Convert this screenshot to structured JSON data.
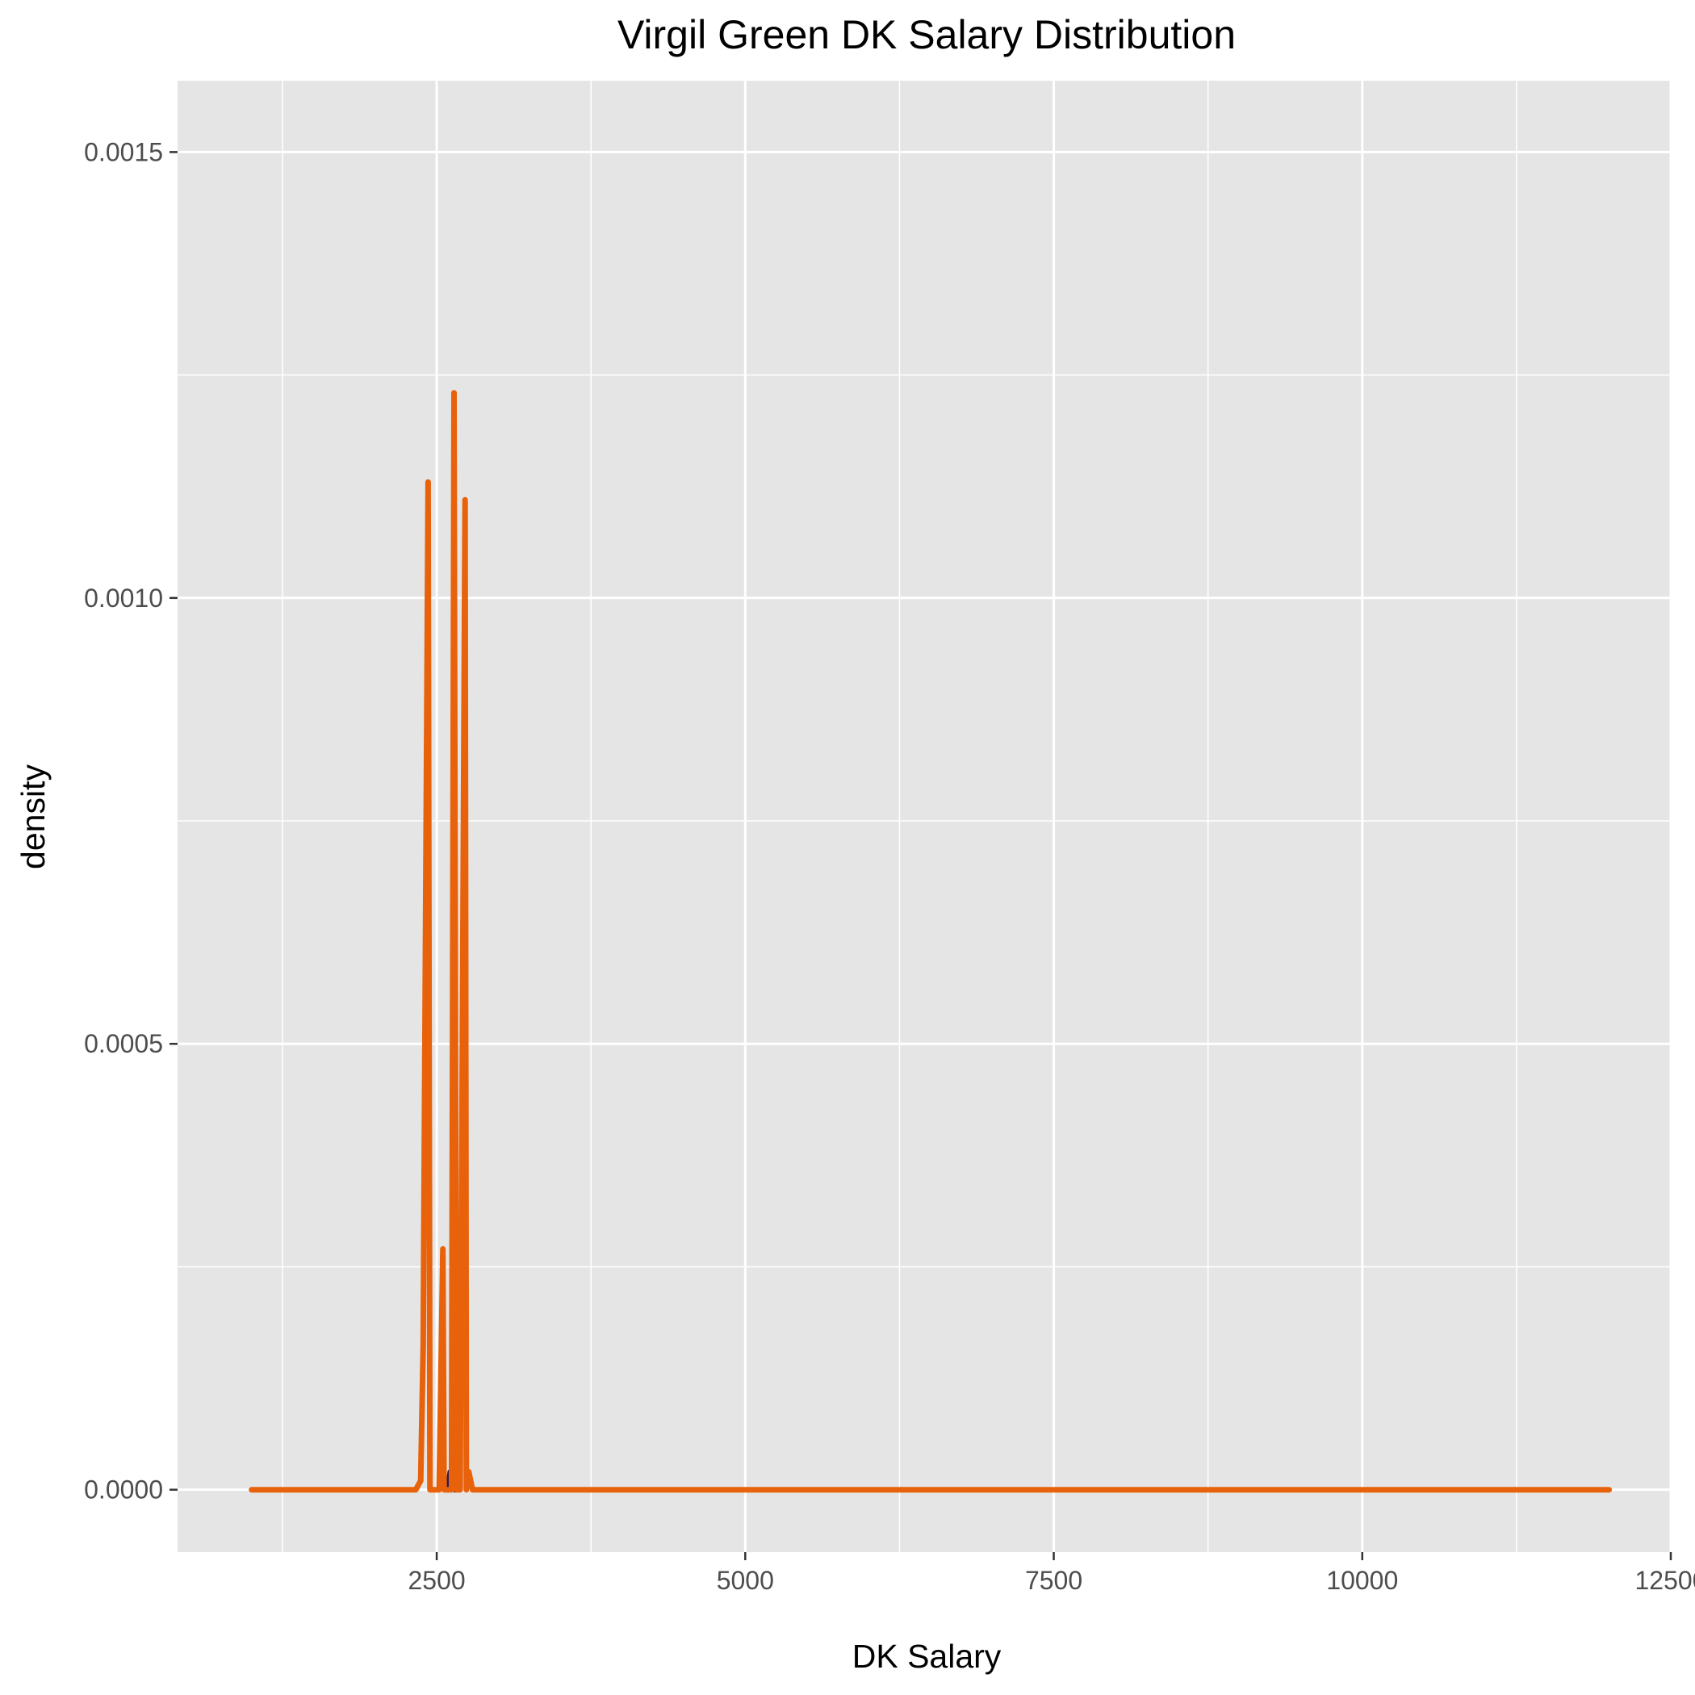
{
  "chart_data": {
    "type": "line",
    "title": "Virgil Green DK Salary Distribution",
    "xlabel": "DK Salary",
    "ylabel": "density",
    "xlim": [
      400,
      12500
    ],
    "ylim": [
      -7e-05,
      0.00158
    ],
    "x_ticks": [
      {
        "value": 2500,
        "label": "2500"
      },
      {
        "value": 5000,
        "label": "5000"
      },
      {
        "value": 7500,
        "label": "7500"
      },
      {
        "value": 10000,
        "label": "10000"
      },
      {
        "value": 12500,
        "label": "12500"
      }
    ],
    "y_ticks": [
      {
        "value": 0,
        "label": "0.0000"
      },
      {
        "value": 0.0005,
        "label": "0.0005"
      },
      {
        "value": 0.001,
        "label": "0.0010"
      },
      {
        "value": 0.0015,
        "label": "0.0015"
      }
    ],
    "x_minor_ticks": [
      1250,
      3750,
      6250,
      8750,
      11250
    ],
    "y_minor_ticks": [
      0.00025,
      0.00075,
      0.00125
    ],
    "grid": true,
    "colors": {
      "panel_background": "#e5e5e5",
      "grid": "#ffffff",
      "line": "#e8620c",
      "secondary_line": "#1f1a5e"
    },
    "series": [
      {
        "color": "#e8620c",
        "x": [
          1000,
          2330,
          2370,
          2390,
          2430,
          2445,
          2520,
          2550,
          2560,
          2570,
          2620,
          2640,
          2660,
          2690,
          2730,
          2740,
          2760,
          2790,
          2800,
          2830,
          2900,
          12000
        ],
        "y": [
          0,
          0,
          1e-05,
          0.00016,
          0.00113,
          0,
          0,
          0.00027,
          0,
          0,
          0,
          0.00123,
          0,
          0,
          0.00111,
          0,
          2e-05,
          0,
          0,
          0,
          0,
          0
        ]
      },
      {
        "color": "#1f1a5e",
        "x": [
          2590,
          2610,
          2630,
          2650
        ],
        "y": [
          0,
          2e-05,
          2e-05,
          0
        ]
      }
    ]
  }
}
